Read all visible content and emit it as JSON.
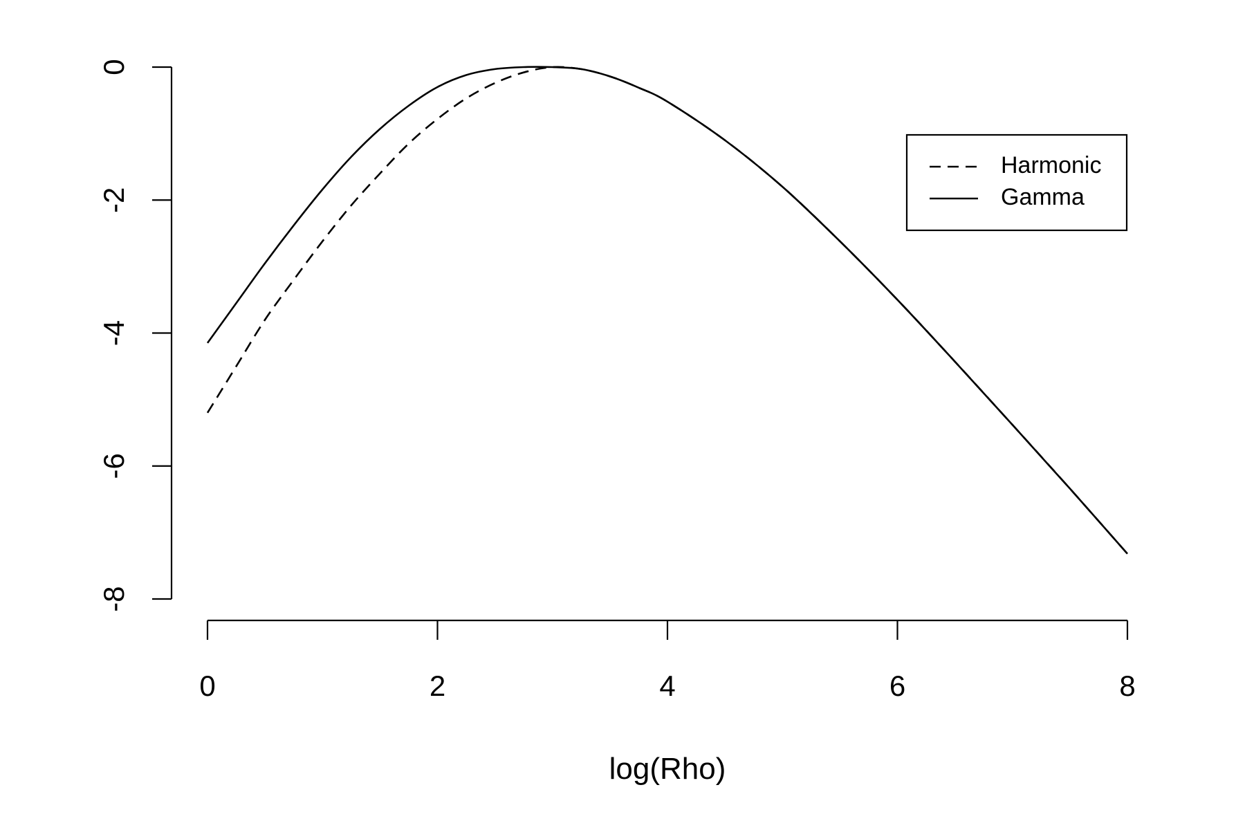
{
  "chart_data": {
    "type": "line",
    "title": "",
    "xlabel": "log(Rho)",
    "ylabel": "",
    "xlim": [
      0,
      8
    ],
    "ylim": [
      -8,
      0
    ],
    "x_ticks": [
      0,
      2,
      4,
      6,
      8
    ],
    "y_ticks": [
      0,
      -2,
      -4,
      -6,
      -8
    ],
    "x_tick_labels": [
      "0",
      "2",
      "4",
      "6",
      "8"
    ],
    "y_tick_labels": [
      "0",
      "-2",
      "-4",
      "-6",
      "-8"
    ],
    "grid": false,
    "legend_position": "top-right",
    "series": [
      {
        "name": "Harmonic",
        "style": "dashed",
        "color": "#000000",
        "x": [
          0,
          0.25,
          0.5,
          0.75,
          1.0,
          1.25,
          1.5,
          1.75,
          2.0,
          2.25,
          2.5,
          2.75,
          3.0,
          3.25,
          3.5,
          3.75,
          4.0,
          4.5,
          5.0,
          5.5,
          6.0,
          6.5,
          7.0,
          7.5,
          8.0
        ],
        "y": [
          -5.2,
          -4.5,
          -3.8,
          -3.2,
          -2.62,
          -2.08,
          -1.6,
          -1.15,
          -0.78,
          -0.47,
          -0.24,
          -0.08,
          0.0,
          -0.03,
          -0.14,
          -0.31,
          -0.52,
          -1.1,
          -1.8,
          -2.62,
          -3.5,
          -4.43,
          -5.38,
          -6.34,
          -7.32
        ]
      },
      {
        "name": "Gamma",
        "style": "solid",
        "color": "#000000",
        "x": [
          0,
          0.25,
          0.5,
          0.75,
          1.0,
          1.25,
          1.5,
          1.75,
          2.0,
          2.25,
          2.5,
          2.75,
          3.0,
          3.25,
          3.5,
          3.75,
          4.0,
          4.5,
          5.0,
          5.5,
          6.0,
          6.5,
          7.0,
          7.5,
          8.0
        ],
        "y": [
          -4.15,
          -3.55,
          -2.95,
          -2.38,
          -1.84,
          -1.35,
          -0.93,
          -0.58,
          -0.3,
          -0.12,
          -0.03,
          0.0,
          0.0,
          -0.03,
          -0.14,
          -0.31,
          -0.52,
          -1.1,
          -1.8,
          -2.62,
          -3.5,
          -4.43,
          -5.38,
          -6.34,
          -7.32
        ]
      }
    ]
  }
}
